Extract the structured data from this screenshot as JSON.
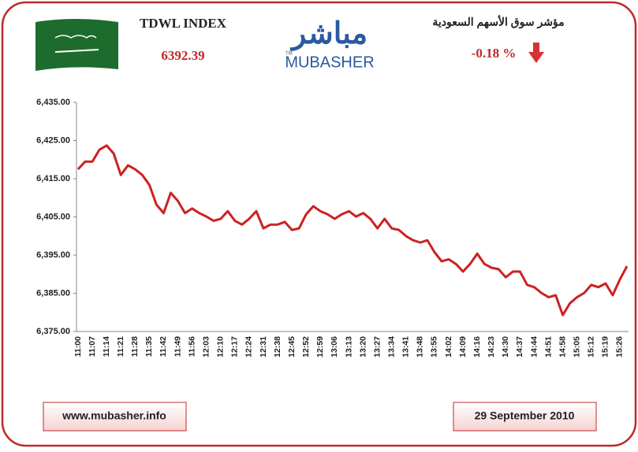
{
  "header": {
    "index_name": "TDWL INDEX",
    "index_value": "6392.39",
    "arabic_title": "مؤشر سوق الأسهم السعودية",
    "change": "-0.18 %",
    "logo_arabic": "مباشر",
    "logo_latin": "MUBASHER",
    "logo_tm": "TM"
  },
  "footer": {
    "website": "www.mubasher.info",
    "date": "29 September 2010"
  },
  "chart_data": {
    "type": "line",
    "categories": [
      "11:00",
      null,
      "11:07",
      null,
      "11:14",
      null,
      "11:21",
      null,
      "11:28",
      null,
      "11:35",
      null,
      "11:42",
      null,
      "11:49",
      null,
      "11:56",
      null,
      "12:03",
      null,
      "12:10",
      null,
      "12:17",
      null,
      "12:24",
      null,
      "12:31",
      null,
      "12:38",
      null,
      "12:45",
      null,
      "12:52",
      null,
      "12:59",
      null,
      "13:06",
      null,
      "13:13",
      null,
      "13:20",
      null,
      "13:27",
      null,
      "13:34",
      null,
      "13:41",
      null,
      "13:48",
      null,
      "13:55",
      null,
      "14:02",
      null,
      "14:09",
      null,
      "14:16",
      null,
      "14:23",
      null,
      "14:30",
      null,
      "14:37",
      null,
      "14:44",
      null,
      "14:51",
      null,
      "14:58",
      null,
      "15:05",
      null,
      "15:12",
      null,
      "15:19",
      null,
      "15:26",
      null
    ],
    "values": [
      6417.5,
      6419.5,
      6419.5,
      6422.6,
      6423.7,
      6421.6,
      6416,
      6418.5,
      6417.5,
      6416,
      6413.4,
      6408.2,
      6406,
      6411.3,
      6409.2,
      6406,
      6407.2,
      6406,
      6405.1,
      6404,
      6404.5,
      6406.5,
      6404,
      6403,
      6404.5,
      6406.5,
      6402,
      6403,
      6403,
      6403.7,
      6401.6,
      6402,
      6405.7,
      6407.8,
      6406.5,
      6405.7,
      6404.5,
      6405.7,
      6406.5,
      6405.1,
      6406,
      6404.5,
      6402,
      6404.5,
      6402,
      6401.6,
      6400,
      6398.9,
      6398.3,
      6398.9,
      6395.8,
      6393.4,
      6393.9,
      6392.7,
      6390.7,
      6392.7,
      6395.4,
      6392.7,
      6391.7,
      6391.3,
      6389.2,
      6390.7,
      6390.7,
      6387.2,
      6386.6,
      6385.1,
      6384,
      6384.5,
      6379.3,
      6382.4,
      6384,
      6385.1,
      6387.2,
      6386.6,
      6387.6,
      6384.5,
      6388.6,
      6392.1
    ],
    "color": "#cc2222",
    "ylim": [
      6375,
      6435
    ],
    "yticks": [
      {
        "value": 6375,
        "label": "6,375.00"
      },
      {
        "value": 6385,
        "label": "6,385.00"
      },
      {
        "value": 6395,
        "label": "6,395.00"
      },
      {
        "value": 6405,
        "label": "6,405.00"
      },
      {
        "value": 6415,
        "label": "6,415.00"
      },
      {
        "value": 6425,
        "label": "6,425.00"
      },
      {
        "value": 6435,
        "label": "6,435.00"
      }
    ],
    "grid": false
  }
}
